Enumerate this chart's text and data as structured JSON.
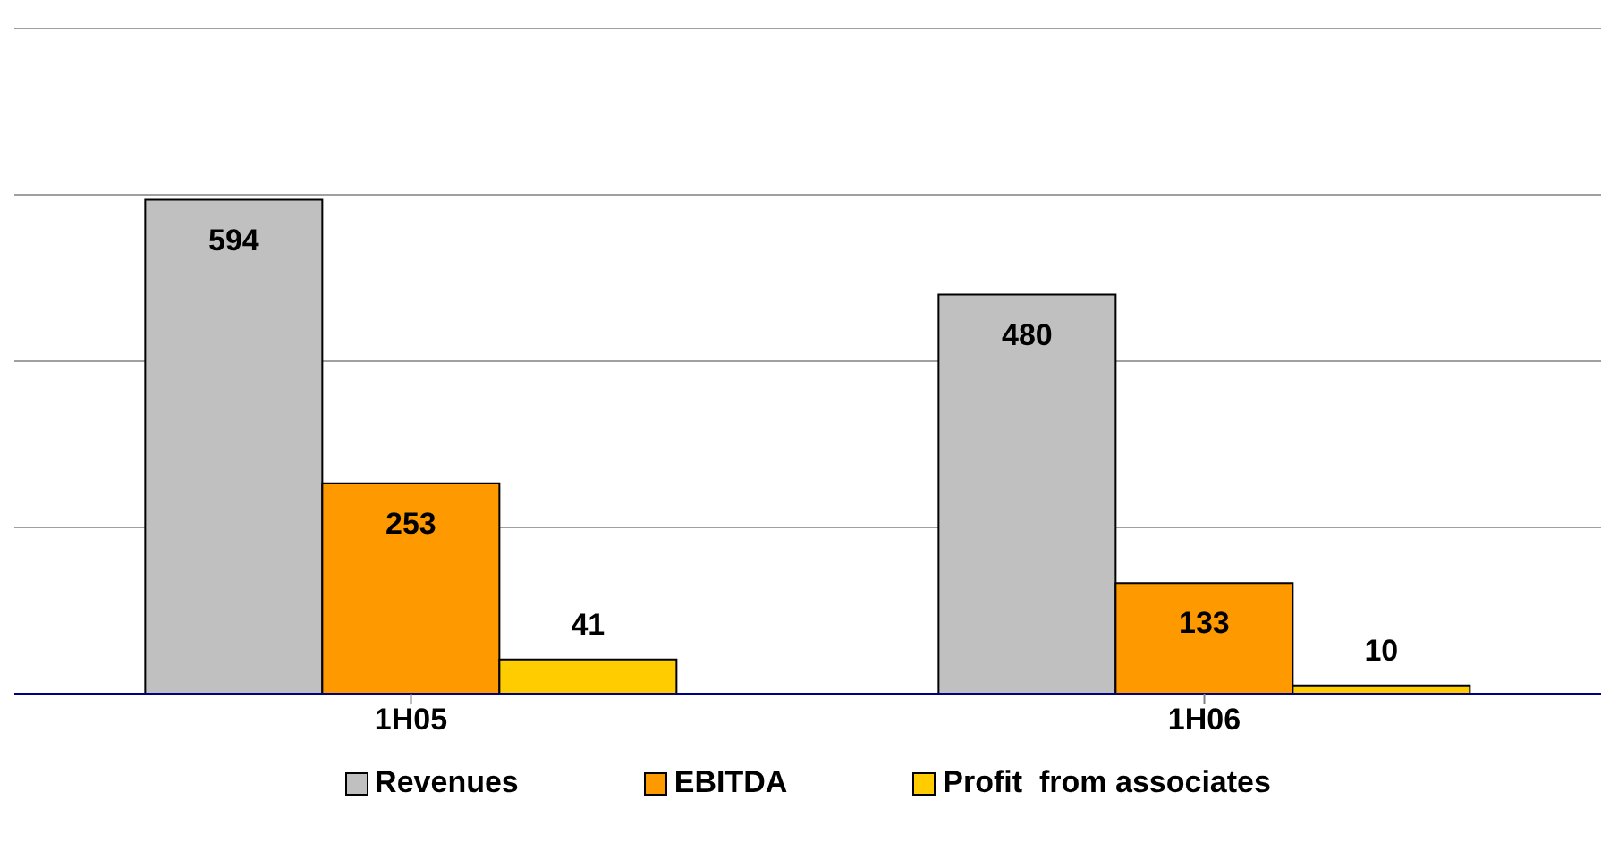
{
  "chart_data": {
    "type": "bar",
    "categories": [
      "1H05",
      "1H06"
    ],
    "series": [
      {
        "name": "Revenues",
        "color": "#c0c0c0",
        "values": [
          594,
          480
        ]
      },
      {
        "name": "EBITDA",
        "color": "#ff9900",
        "values": [
          253,
          133
        ]
      },
      {
        "name": "Profit  from associates",
        "color": "#ffcc00",
        "values": [
          41,
          10
        ]
      }
    ],
    "ylim": [
      0,
      800
    ],
    "yticks": [
      {
        "value": 0,
        "label": null
      },
      {
        "value": 200,
        "label": null
      },
      {
        "value": 400,
        "label": null
      },
      {
        "value": 600,
        "label": null
      },
      {
        "value": 800,
        "label": null
      }
    ],
    "tick_labels": "x",
    "grid": "y",
    "legend": "bottom",
    "data_labels": true
  }
}
